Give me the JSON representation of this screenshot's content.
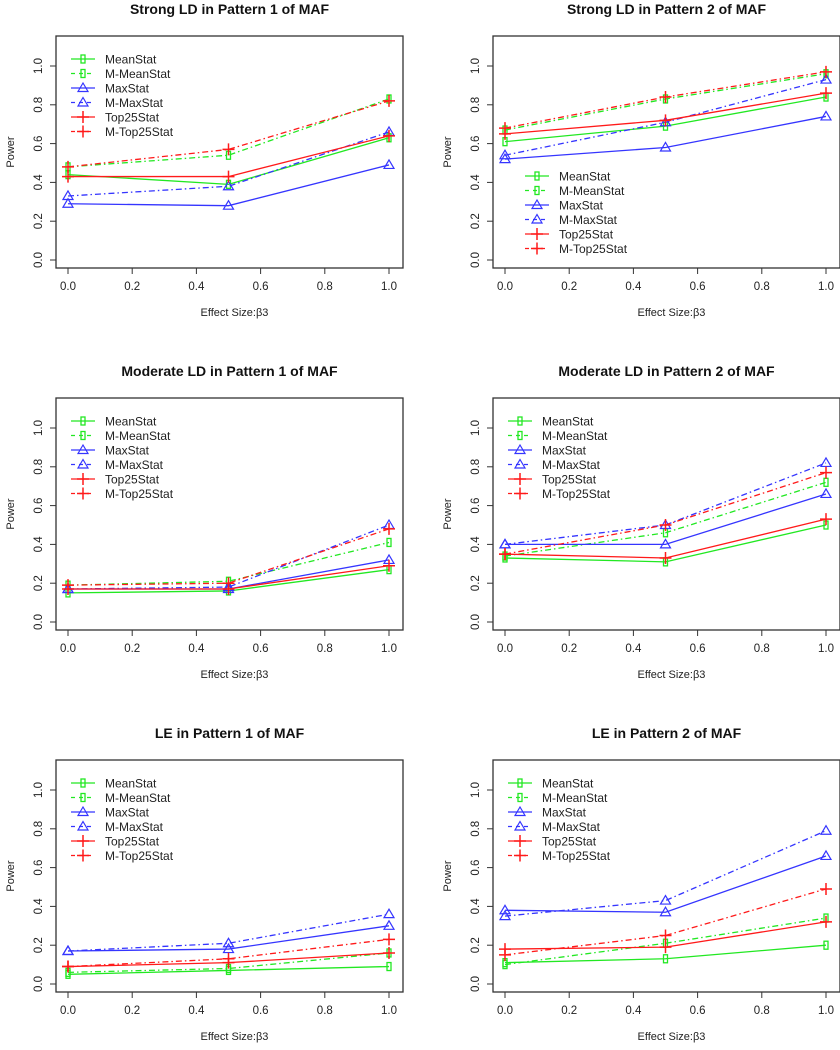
{
  "colors": {
    "green": "#22e822",
    "blue": "#3535ff",
    "red": "#ff1a1a",
    "axis": "#333333"
  },
  "chart_data": [
    {
      "type": "line",
      "title": "Strong LD in Pattern 1 of MAF",
      "xlabel": "Effect Size:β3",
      "ylabel": "Power",
      "x": [
        0,
        0.5,
        1.0
      ],
      "xticks": [
        "0.0",
        "0.2",
        "0.4",
        "0.6",
        "0.8",
        "1.0"
      ],
      "yticks": [
        "0.0",
        "0.2",
        "0.4",
        "0.6",
        "0.8",
        "1.0"
      ],
      "xlim": [
        0,
        1
      ],
      "ylim": [
        0,
        1.1
      ],
      "legend": "top-left",
      "series": [
        {
          "name": "MeanStat",
          "values": [
            0.44,
            0.39,
            0.63
          ]
        },
        {
          "name": "M-MeanStat",
          "values": [
            0.48,
            0.54,
            0.83
          ]
        },
        {
          "name": "MaxStat",
          "values": [
            0.29,
            0.28,
            0.49
          ]
        },
        {
          "name": "M-MaxStat",
          "values": [
            0.33,
            0.38,
            0.66
          ]
        },
        {
          "name": "Top25Stat",
          "values": [
            0.43,
            0.43,
            0.64
          ]
        },
        {
          "name": "M-Top25Stat",
          "values": [
            0.48,
            0.57,
            0.82
          ]
        }
      ]
    },
    {
      "type": "line",
      "title": "Strong LD in Pattern 2 of MAF",
      "xlabel": "Effect Size:β3",
      "ylabel": "Power",
      "x": [
        0,
        0.5,
        1.0
      ],
      "xticks": [
        "0.0",
        "0.2",
        "0.4",
        "0.6",
        "0.8",
        "1.0"
      ],
      "yticks": [
        "0.0",
        "0.2",
        "0.4",
        "0.6",
        "0.8",
        "1.0"
      ],
      "xlim": [
        0,
        1
      ],
      "ylim": [
        0,
        1.1
      ],
      "legend": "bottom-left",
      "series": [
        {
          "name": "MeanStat",
          "values": [
            0.61,
            0.69,
            0.84
          ]
        },
        {
          "name": "M-MeanStat",
          "values": [
            0.67,
            0.83,
            0.96
          ]
        },
        {
          "name": "MaxStat",
          "values": [
            0.52,
            0.58,
            0.74
          ]
        },
        {
          "name": "M-MaxStat",
          "values": [
            0.54,
            0.71,
            0.93
          ]
        },
        {
          "name": "Top25Stat",
          "values": [
            0.65,
            0.72,
            0.86
          ]
        },
        {
          "name": "M-Top25Stat",
          "values": [
            0.68,
            0.84,
            0.97
          ]
        }
      ]
    },
    {
      "type": "line",
      "title": "Moderate LD in Pattern 1 of MAF",
      "xlabel": "Effect Size:β3",
      "ylabel": "Power",
      "x": [
        0,
        0.5,
        1.0
      ],
      "xticks": [
        "0.0",
        "0.2",
        "0.4",
        "0.6",
        "0.8",
        "1.0"
      ],
      "yticks": [
        "0.0",
        "0.2",
        "0.4",
        "0.6",
        "0.8",
        "1.0"
      ],
      "xlim": [
        0,
        1
      ],
      "ylim": [
        0,
        1.1
      ],
      "legend": "top-left",
      "series": [
        {
          "name": "MeanStat",
          "values": [
            0.15,
            0.16,
            0.27
          ]
        },
        {
          "name": "M-MeanStat",
          "values": [
            0.19,
            0.21,
            0.41
          ]
        },
        {
          "name": "MaxStat",
          "values": [
            0.17,
            0.17,
            0.32
          ]
        },
        {
          "name": "M-MaxStat",
          "values": [
            0.17,
            0.18,
            0.5
          ]
        },
        {
          "name": "Top25Stat",
          "values": [
            0.17,
            0.17,
            0.29
          ]
        },
        {
          "name": "M-Top25Stat",
          "values": [
            0.19,
            0.2,
            0.48
          ]
        }
      ]
    },
    {
      "type": "line",
      "title": "Moderate LD in Pattern 2 of MAF",
      "xlabel": "Effect Size:β3",
      "ylabel": "Power",
      "x": [
        0,
        0.5,
        1.0
      ],
      "xticks": [
        "0.0",
        "0.2",
        "0.4",
        "0.6",
        "0.8",
        "1.0"
      ],
      "yticks": [
        "0.0",
        "0.2",
        "0.4",
        "0.6",
        "0.8",
        "1.0"
      ],
      "xlim": [
        0,
        1
      ],
      "ylim": [
        0,
        1.1
      ],
      "legend": "top-left",
      "series": [
        {
          "name": "MeanStat",
          "values": [
            0.33,
            0.31,
            0.5
          ]
        },
        {
          "name": "M-MeanStat",
          "values": [
            0.34,
            0.46,
            0.72
          ]
        },
        {
          "name": "MaxStat",
          "values": [
            0.4,
            0.4,
            0.66
          ]
        },
        {
          "name": "M-MaxStat",
          "values": [
            0.4,
            0.5,
            0.82
          ]
        },
        {
          "name": "Top25Stat",
          "values": [
            0.35,
            0.33,
            0.53
          ]
        },
        {
          "name": "M-Top25Stat",
          "values": [
            0.35,
            0.5,
            0.77
          ]
        }
      ]
    },
    {
      "type": "line",
      "title": "LE in Pattern 1 of MAF",
      "xlabel": "Effect Size:β3",
      "ylabel": "Power",
      "x": [
        0,
        0.5,
        1.0
      ],
      "xticks": [
        "0.0",
        "0.2",
        "0.4",
        "0.6",
        "0.8",
        "1.0"
      ],
      "yticks": [
        "0.0",
        "0.2",
        "0.4",
        "0.6",
        "0.8",
        "1.0"
      ],
      "xlim": [
        0,
        1
      ],
      "ylim": [
        0,
        1.1
      ],
      "legend": "top-left",
      "series": [
        {
          "name": "MeanStat",
          "values": [
            0.05,
            0.07,
            0.09
          ]
        },
        {
          "name": "M-MeanStat",
          "values": [
            0.06,
            0.08,
            0.16
          ]
        },
        {
          "name": "MaxStat",
          "values": [
            0.17,
            0.18,
            0.3
          ]
        },
        {
          "name": "M-MaxStat",
          "values": [
            0.17,
            0.21,
            0.36
          ]
        },
        {
          "name": "Top25Stat",
          "values": [
            0.09,
            0.11,
            0.16
          ]
        },
        {
          "name": "M-Top25Stat",
          "values": [
            0.09,
            0.13,
            0.23
          ]
        }
      ]
    },
    {
      "type": "line",
      "title": "LE in Pattern 2 of MAF",
      "xlabel": "Effect Size:β3",
      "ylabel": "Power",
      "x": [
        0,
        0.5,
        1.0
      ],
      "xticks": [
        "0.0",
        "0.2",
        "0.4",
        "0.6",
        "0.8",
        "1.0"
      ],
      "yticks": [
        "0.0",
        "0.2",
        "0.4",
        "0.6",
        "0.8",
        "1.0"
      ],
      "xlim": [
        0,
        1
      ],
      "ylim": [
        0,
        1.1
      ],
      "legend": "top-left",
      "series": [
        {
          "name": "MeanStat",
          "values": [
            0.11,
            0.13,
            0.2
          ]
        },
        {
          "name": "M-MeanStat",
          "values": [
            0.1,
            0.21,
            0.34
          ]
        },
        {
          "name": "MaxStat",
          "values": [
            0.38,
            0.37,
            0.66
          ]
        },
        {
          "name": "M-MaxStat",
          "values": [
            0.35,
            0.43,
            0.79
          ]
        },
        {
          "name": "Top25Stat",
          "values": [
            0.18,
            0.19,
            0.32
          ]
        },
        {
          "name": "M-Top25Stat",
          "values": [
            0.15,
            0.25,
            0.49
          ]
        }
      ]
    }
  ]
}
